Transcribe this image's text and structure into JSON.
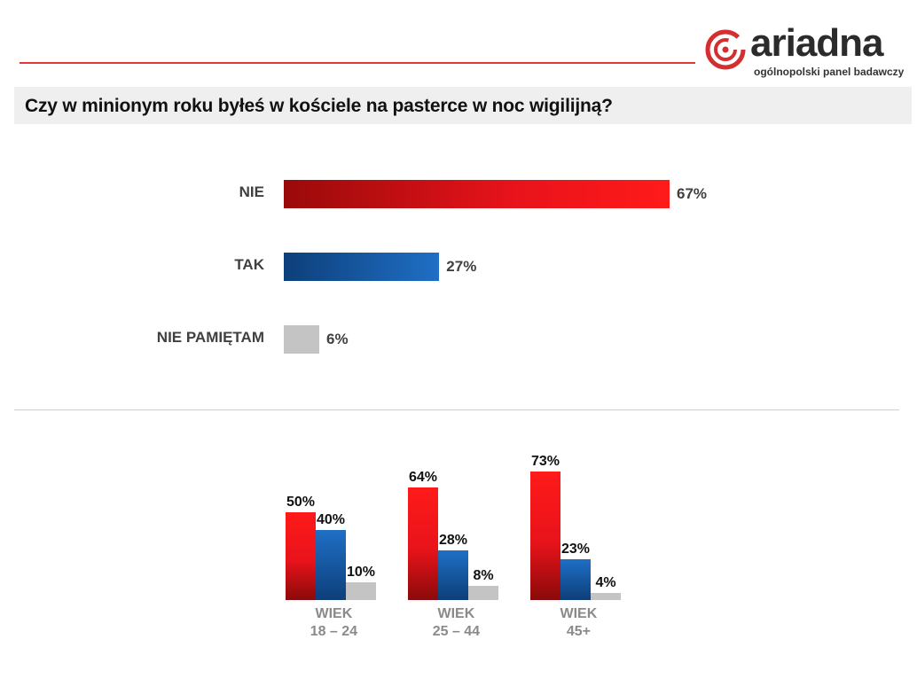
{
  "logo": {
    "brand": "ariadna",
    "tagline": "ogólnopolski panel badawczy"
  },
  "question": "Czy w minionym roku byłeś w kościele na pasterce w noc wigilijną?",
  "colors": {
    "nie": "#e8131b",
    "tak": "#1565c0",
    "nie_pamietam": "#c0c0c0",
    "accent": "#e53935"
  },
  "chart_data": [
    {
      "type": "bar",
      "orientation": "horizontal",
      "categories": [
        "NIE",
        "TAK",
        "NIE PAMIĘTAM"
      ],
      "values": [
        67,
        27,
        6
      ],
      "value_labels": [
        "67%",
        "27%",
        "6%"
      ]
    },
    {
      "type": "bar",
      "groups": [
        {
          "label_line1": "WIEK",
          "label_line2": "18 – 24",
          "values": [
            50,
            40,
            10
          ],
          "value_labels": [
            "50%",
            "40%",
            "10%"
          ]
        },
        {
          "label_line1": "WIEK",
          "label_line2": "25 – 44",
          "values": [
            64,
            28,
            8
          ],
          "value_labels": [
            "64%",
            "28%",
            "8%"
          ]
        },
        {
          "label_line1": "WIEK",
          "label_line2": "45+",
          "values": [
            73,
            23,
            4
          ],
          "value_labels": [
            "73%",
            "23%",
            "4%"
          ]
        }
      ]
    }
  ]
}
